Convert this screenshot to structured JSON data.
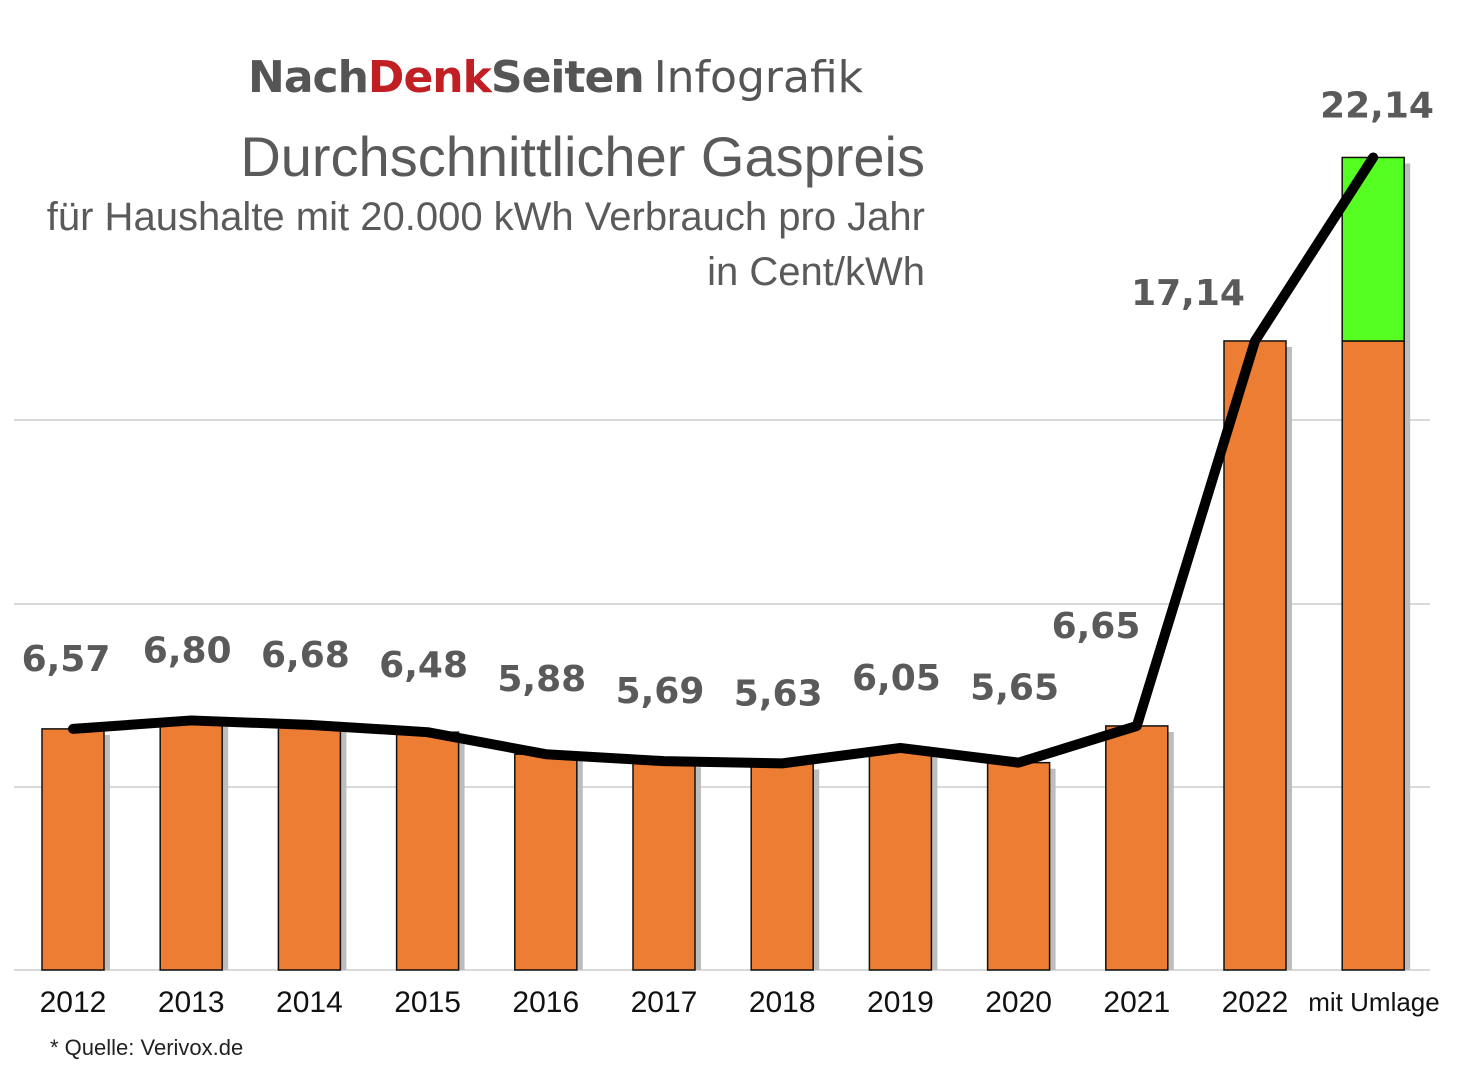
{
  "header": {
    "brand_nach": "Nach",
    "brand_denk": "Denk",
    "brand_seiten": "Seiten",
    "brand_suffix": "Infografik",
    "title": "Durchschnittlicher Gaspreis",
    "subtitle_line1": "für Haushalte mit 20.000 kWh Verbrauch pro Jahr",
    "subtitle_line2": "in Cent/kWh"
  },
  "footer": {
    "source": "* Quelle: Verivox.de"
  },
  "colors": {
    "bar": "#ec7d32",
    "bar_levy": "#55ff22",
    "bar_stroke": "#111111",
    "line": "#000000",
    "grid": "#d9d9d9",
    "brand_red": "#c11f24",
    "text_gray": "#5a5a5a"
  },
  "chart_data": {
    "type": "bar",
    "categories": [
      "2012",
      "2013",
      "2014",
      "2015",
      "2016",
      "2017",
      "2018",
      "2019",
      "2020",
      "2021",
      "2022",
      "mit Umlage"
    ],
    "values": [
      6.57,
      6.8,
      6.68,
      6.48,
      5.88,
      5.69,
      5.63,
      6.05,
      5.65,
      6.65,
      17.14,
      22.14
    ],
    "value_labels": [
      "6,57",
      "6,80",
      "6,68",
      "6,48",
      "5,88",
      "5,69",
      "5,63",
      "6,05",
      "5,65",
      "6,65",
      "17,14",
      "22,14"
    ],
    "stacked_last": {
      "base": 17.14,
      "levy": 5.0
    },
    "line_overlay": true,
    "title": "Durchschnittlicher Gaspreis",
    "xlabel": "",
    "ylabel": "",
    "ylim": [
      0,
      22.14
    ],
    "grid": true,
    "legend": "none"
  }
}
